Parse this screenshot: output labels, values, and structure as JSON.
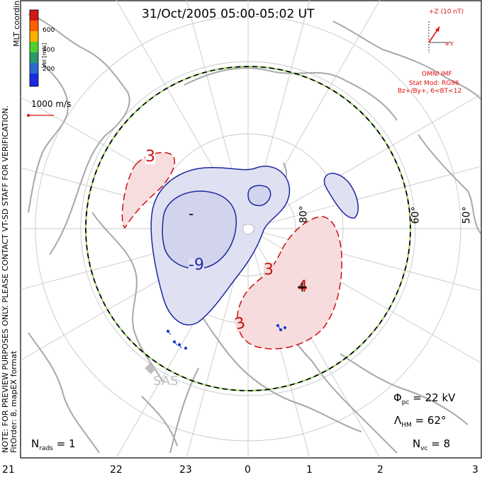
{
  "title": "31/Oct/2005 05:00-05:02 UT",
  "coord_label": "MLT coordinates",
  "color_scale": {
    "label": "Vel [m/s]",
    "ticks": [
      "600",
      "400",
      "200"
    ],
    "colors": [
      "#d01818",
      "#ff6000",
      "#ffb000",
      "#50d030",
      "#2a9a6a",
      "#2a6ad0",
      "#1a2ae0"
    ]
  },
  "speed_ref": "1000 m/s",
  "imf": {
    "z_label": "+Z (10 nT)",
    "y_label": "+Y",
    "source": "OMNI IMF",
    "model_line1": "Stat Mod: RG96",
    "model_line2": "Bz+/By+, 6<BT<12"
  },
  "side_note": {
    "line1": "NOTE: FOR PREVIEW PURPOSES ONLY. PLEASE CONTACT VT-SD STAFF FOR VERIFICATION.",
    "line2": "FitOrder: 8, mapEX format"
  },
  "contours": {
    "minus9": "-9",
    "minus1": "-",
    "plus3a": "3",
    "plus3b": "3",
    "plus3c": "3",
    "plus4": "4"
  },
  "radar_label": "SAS",
  "lat_labels": [
    "80°",
    "60°",
    "50°"
  ],
  "stats": {
    "nrads_label": "N",
    "nrads_sub": "rads",
    "nrads_value": "= 1",
    "phi_label": "Φ",
    "phi_sub": "pc",
    "phi_value": "= 22 kV",
    "lambda_label": "Λ",
    "lambda_sub": "HM",
    "lambda_value": "= 62°",
    "nvc_label": "N",
    "nvc_sub": "vc",
    "nvc_value": "= 8"
  },
  "mlt_labels": [
    "21",
    "22",
    "23",
    "0",
    "1",
    "2",
    "3"
  ]
}
